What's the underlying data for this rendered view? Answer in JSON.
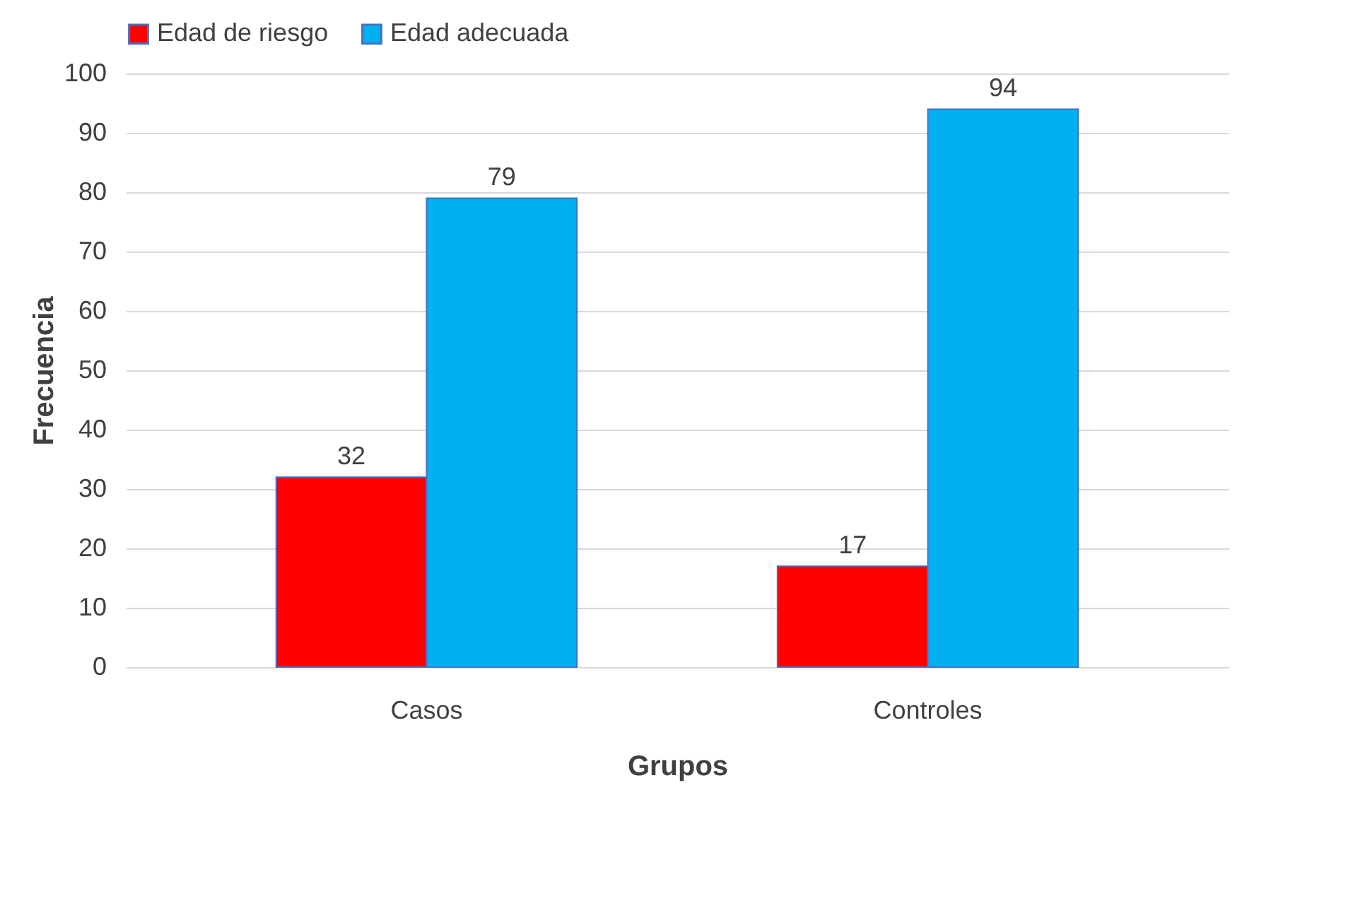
{
  "chart_data": {
    "type": "bar",
    "xlabel": "Grupos",
    "ylabel": "Frecuencia",
    "categories": [
      "Casos",
      "Controles"
    ],
    "series": [
      {
        "name": "Edad de riesgo",
        "color": "#ff0000",
        "values": [
          32,
          17
        ]
      },
      {
        "name": "Edad adecuada",
        "color": "#00b0f0",
        "values": [
          79,
          94
        ]
      }
    ],
    "ylim": [
      0,
      100
    ],
    "yticks": [
      0,
      10,
      20,
      30,
      40,
      50,
      60,
      70,
      80,
      90,
      100
    ],
    "grid": "y",
    "legend": "top",
    "data_labels": true
  }
}
